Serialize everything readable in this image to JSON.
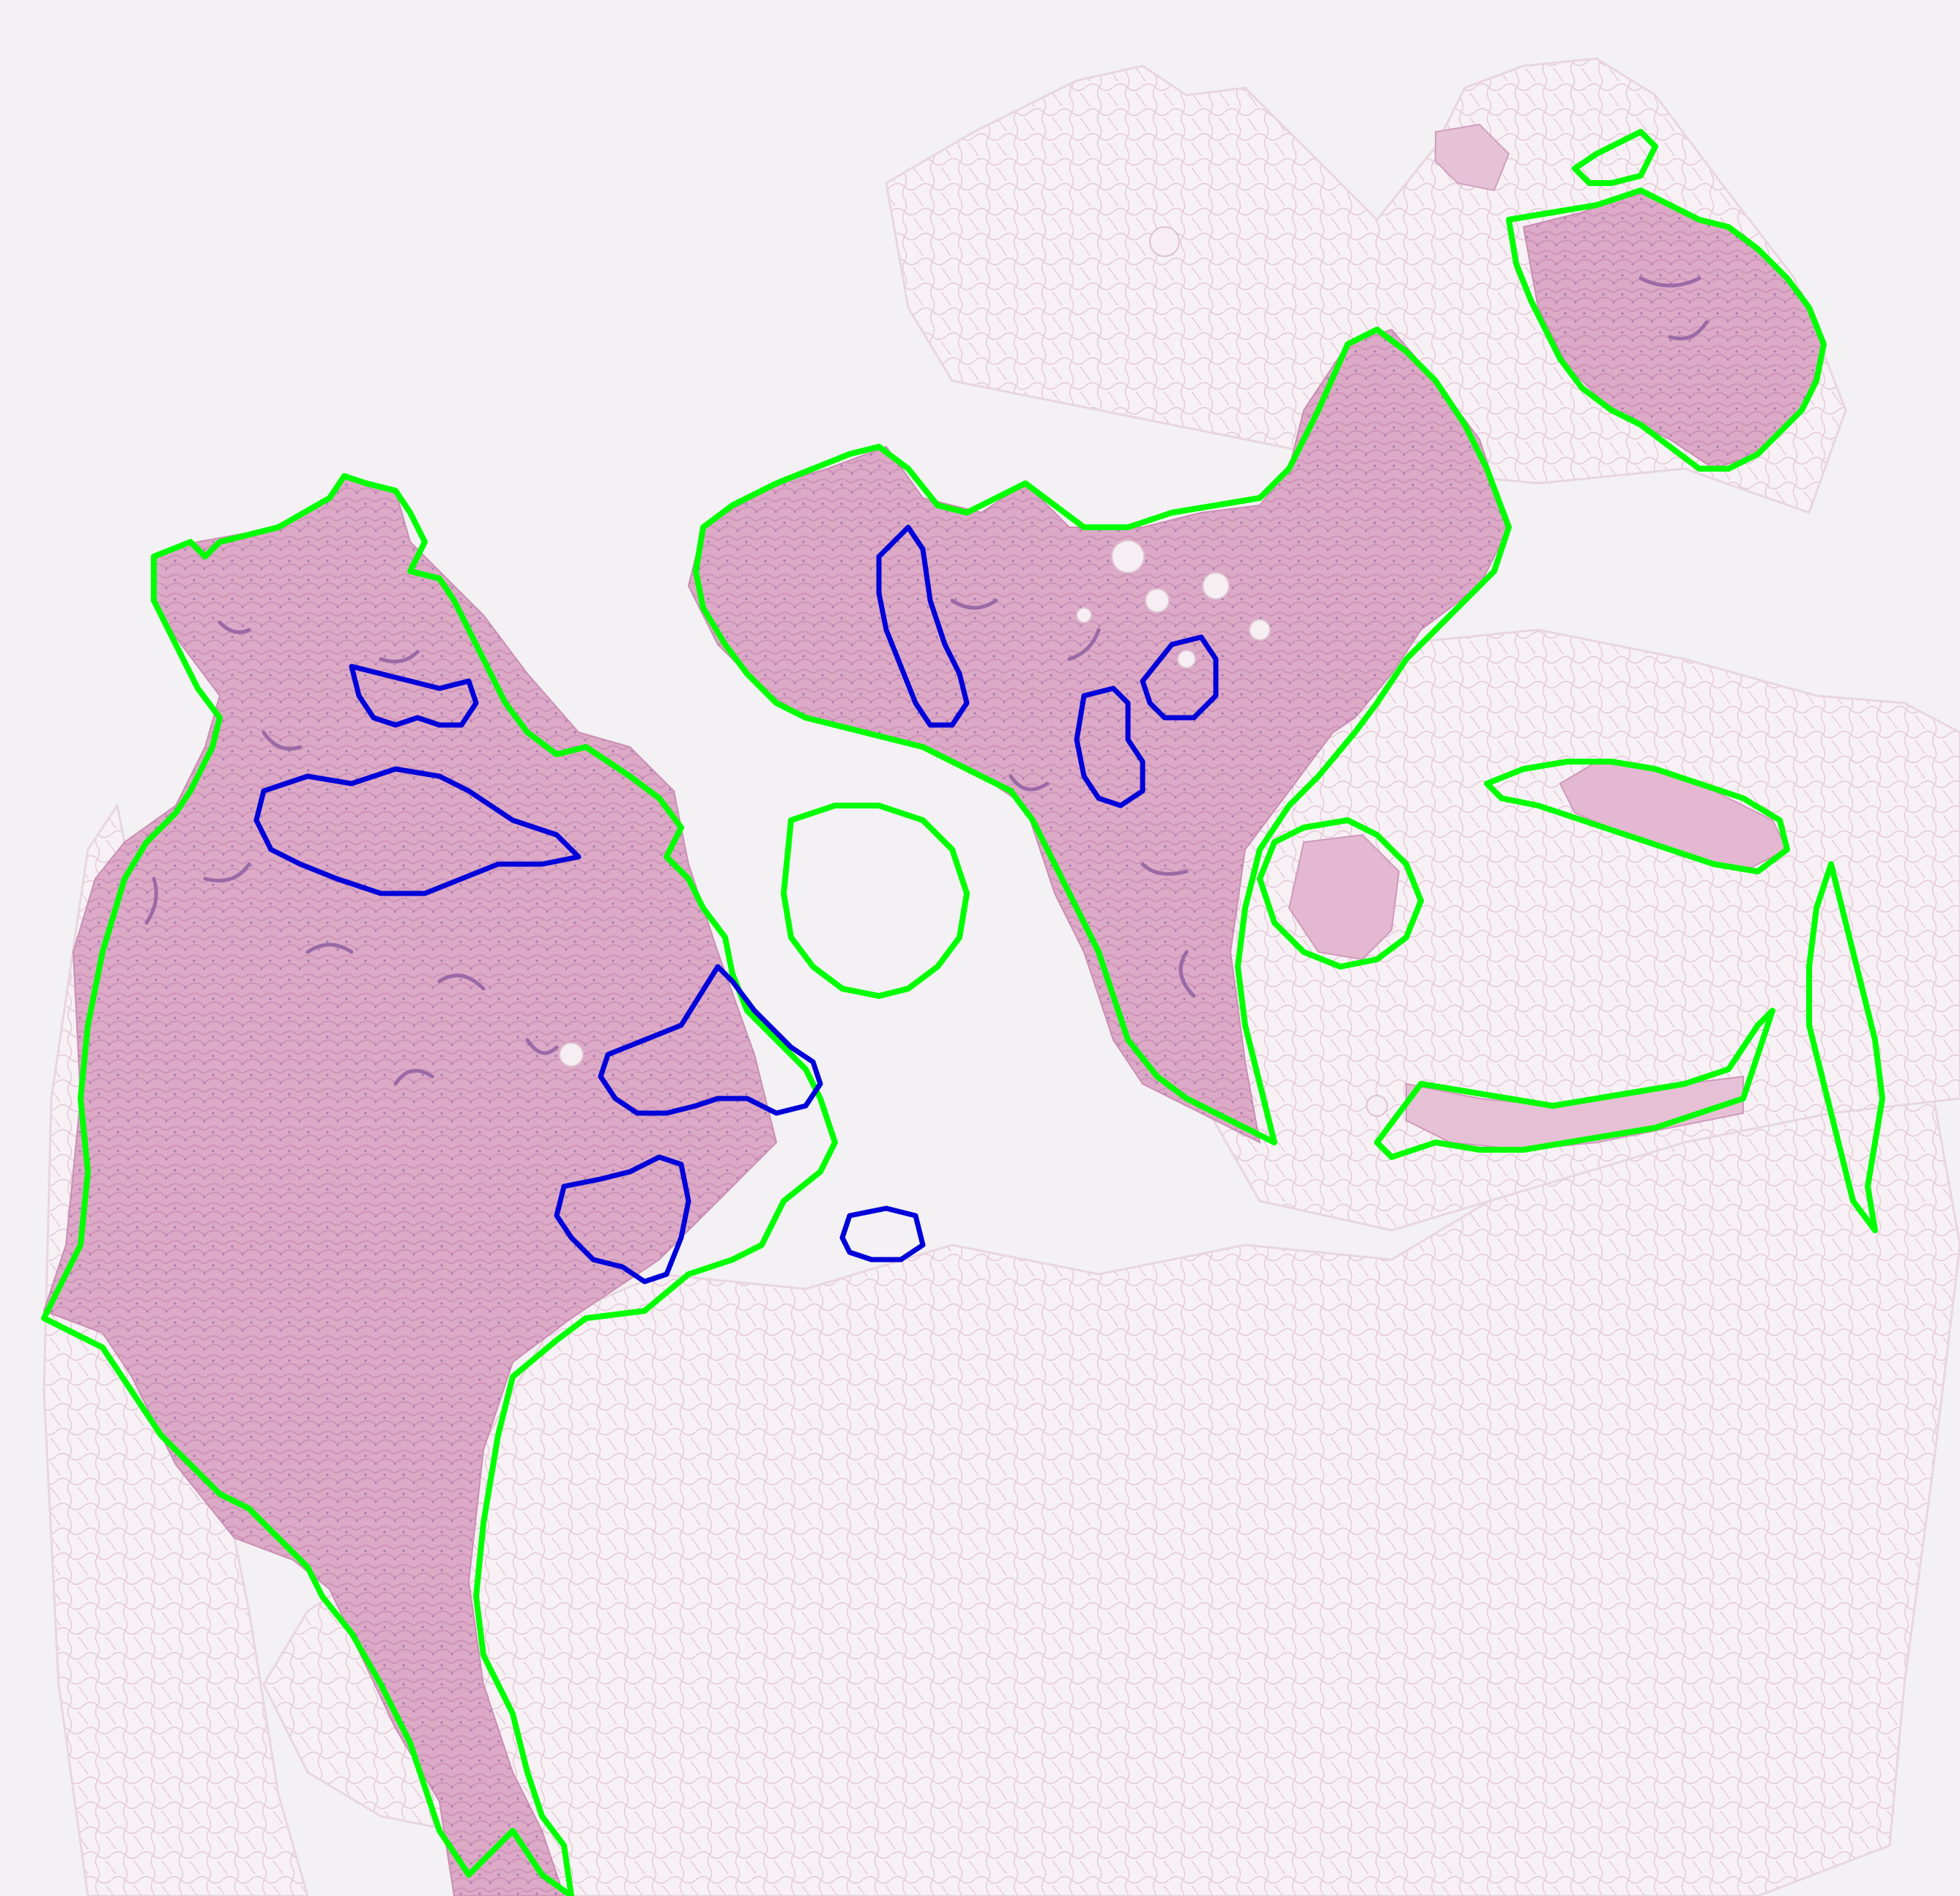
{
  "image": {
    "kind": "whole-slide histology scan with region annotations",
    "printed_text": []
  },
  "colors": {
    "background": "#f3f1f3",
    "adipose_tissue": "#f7f1f5",
    "adipose_septa": "#e2c4d3",
    "stroma_dense": "#dba8c6",
    "stroma_light": "#e6bfd4",
    "nuclei_dark": "#9a6aa6",
    "annotation_region_outline": "#00ff00",
    "annotation_lesion_outline": "#0000d8"
  },
  "icons": {
    "region_outline": "green-annotation-outline-icon",
    "lesion_outline": "blue-annotation-outline-icon"
  },
  "annotations": {
    "green_outline_count": 9,
    "blue_outline_count": 8
  }
}
